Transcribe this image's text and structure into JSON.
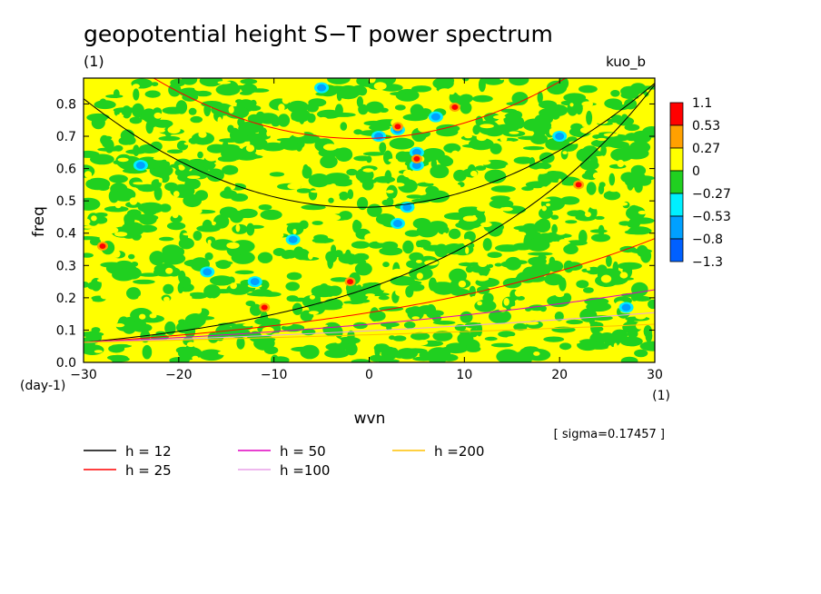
{
  "chart_data": {
    "type": "heatmap",
    "title": "geopotential height S−T power spectrum",
    "subtitle": "(1)",
    "label_right": "kuo_b",
    "xlabel": "wvn",
    "ylabel": "freq",
    "x_unit": "(1)",
    "y_unit": "(day-1)",
    "sigma_text": "[ sigma=0.17457 ]",
    "xlim": [
      -30,
      30
    ],
    "ylim": [
      0.0,
      0.88
    ],
    "x_ticks": [
      -30,
      -20,
      -10,
      0,
      10,
      20,
      30
    ],
    "x_tick_labels": [
      "−30",
      "−20",
      "−10",
      "0",
      "10",
      "20",
      "30"
    ],
    "y_ticks": [
      0.0,
      0.1,
      0.2,
      0.3,
      0.4,
      0.5,
      0.6,
      0.7,
      0.8
    ],
    "y_tick_labels": [
      "0.0",
      "0.1",
      "0.2",
      "0.3",
      "0.4",
      "0.5",
      "0.6",
      "0.7",
      "0.8"
    ],
    "colorbar": {
      "labels": [
        "1.1",
        "0.53",
        "0.27",
        "0",
        "−0.27",
        "−0.53",
        "−0.8",
        "−1.3"
      ],
      "colors": [
        "#0060ff",
        "#00a0ff",
        "#00f0ff",
        "#20d020",
        "#ffff00",
        "#ffa000",
        "#ff0000"
      ]
    },
    "features": [
      {
        "kind": "negative",
        "x": 3,
        "y": 0.72
      },
      {
        "kind": "negative",
        "x": 5,
        "y": 0.65
      },
      {
        "kind": "negative",
        "x": 7,
        "y": 0.76
      },
      {
        "kind": "negative",
        "x": 5,
        "y": 0.61
      },
      {
        "kind": "negative",
        "x": 4,
        "y": 0.48
      },
      {
        "kind": "negative",
        "x": 3,
        "y": 0.43
      },
      {
        "kind": "negative",
        "x": 1,
        "y": 0.7
      },
      {
        "kind": "negative",
        "x": -12,
        "y": 0.25
      },
      {
        "kind": "negative",
        "x": -17,
        "y": 0.28
      },
      {
        "kind": "negative",
        "x": -8,
        "y": 0.38
      },
      {
        "kind": "negative",
        "x": 20,
        "y": 0.7
      },
      {
        "kind": "negative",
        "x": -5,
        "y": 0.85
      },
      {
        "kind": "negative",
        "x": -24,
        "y": 0.61
      },
      {
        "kind": "negative",
        "x": 27,
        "y": 0.17
      },
      {
        "kind": "positive",
        "x": 3,
        "y": 0.73
      },
      {
        "kind": "positive",
        "x": 5,
        "y": 0.63
      },
      {
        "kind": "positive",
        "x": -2,
        "y": 0.25
      },
      {
        "kind": "positive",
        "x": -11,
        "y": 0.17
      },
      {
        "kind": "positive",
        "x": -28,
        "y": 0.36
      },
      {
        "kind": "positive",
        "x": 9,
        "y": 0.79
      },
      {
        "kind": "positive",
        "x": 22,
        "y": 0.55
      }
    ],
    "dispersion_legend": [
      {
        "label": "h = 12",
        "color": "#000000"
      },
      {
        "label": "h = 25",
        "color": "#ff0000"
      },
      {
        "label": "h = 50",
        "color": "#e000c0"
      },
      {
        "label": "h =100",
        "color": "#e8a0e8"
      },
      {
        "label": "h =200",
        "color": "#ffc000"
      }
    ],
    "grid": false,
    "legend_position": "bottom"
  }
}
